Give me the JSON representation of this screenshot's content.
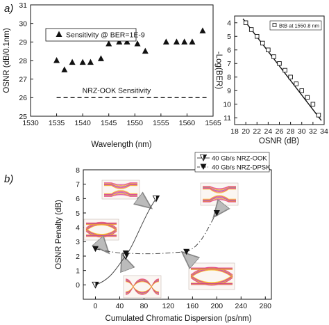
{
  "chart_data": [
    {
      "panel": "a)",
      "type": "scatter",
      "ylabel": "OSNR (dB/0.1nm)",
      "xlabel": "Wavelength (nm)",
      "xlim": [
        1530,
        1565
      ],
      "ylim": [
        25,
        31
      ],
      "xticks": [
        1530,
        1535,
        1540,
        1545,
        1550,
        1555,
        1560,
        1565
      ],
      "yticks": [
        25,
        26,
        27,
        28,
        29,
        30,
        31
      ],
      "grid": false,
      "legend_position": "top-left",
      "series": [
        {
          "name": "Sensitivity @ BER=1E-9",
          "marker": "triangle-up",
          "x": [
            1535,
            1536.5,
            1538,
            1540,
            1541.5,
            1543.5,
            1545,
            1547,
            1548.5,
            1550.5,
            1552,
            1556,
            1558,
            1559.5,
            1561,
            1563
          ],
          "y": [
            28.0,
            27.5,
            27.9,
            27.9,
            27.9,
            28.1,
            28.9,
            29.0,
            29.0,
            28.9,
            28.5,
            29.0,
            29.0,
            29.0,
            29.0,
            29.6
          ]
        }
      ],
      "reference_line": {
        "label": "NRZ-OOK Sensitivity",
        "y": 26.0,
        "style": "dashed"
      }
    },
    {
      "type": "scatter",
      "ylabel": "-Log(BER)",
      "xlabel": "OSNR (dB)",
      "xlim": [
        18,
        34
      ],
      "ylim": [
        11.5,
        3.5
      ],
      "y_inverted": true,
      "xticks": [
        18,
        20,
        22,
        24,
        26,
        28,
        30,
        32,
        34
      ],
      "yticks": [
        4,
        5,
        6,
        7,
        8,
        9,
        10,
        11
      ],
      "legend_position": "top-right",
      "series": [
        {
          "name": "BtB at 1550.8 nm",
          "marker": "open-square",
          "x": [
            20,
            21,
            22,
            23,
            24,
            25,
            26,
            27,
            28,
            29,
            30,
            31,
            32,
            33
          ],
          "y": [
            4.0,
            4.5,
            5.0,
            5.5,
            6.0,
            6.5,
            7.0,
            7.5,
            8.0,
            8.5,
            9.0,
            9.5,
            10.0,
            10.8
          ]
        }
      ],
      "fit_line": {
        "x": [
          19.5,
          33.5
        ],
        "y": [
          3.7,
          11.2
        ]
      }
    },
    {
      "panel": "b)",
      "type": "line",
      "ylabel": "OSNR Penalty (dB)",
      "xlabel": "Cumulated Chromatic Dispersion (ps/nm)",
      "xlim": [
        -20,
        290
      ],
      "ylim": [
        -1,
        8
      ],
      "xticks": [
        0,
        40,
        80,
        120,
        160,
        200,
        240,
        280
      ],
      "yticks": [
        0,
        1,
        2,
        3,
        4,
        5,
        6,
        7,
        8
      ],
      "legend_position": "top-right",
      "series": [
        {
          "name": "40 Gb/s NRZ-OOK",
          "marker": "half-filled-triangle-down",
          "line_style": "solid",
          "x": [
            0,
            50,
            100
          ],
          "y": [
            0.0,
            2.0,
            6.0
          ]
        },
        {
          "name": "40 Gb/s NRZ-DPSK",
          "marker": "filled-triangle-down",
          "line_style": "dash-dot",
          "x": [
            0,
            50,
            150,
            200
          ],
          "y": [
            2.5,
            2.2,
            2.3,
            5.0
          ]
        }
      ],
      "inset_eye_diagrams": 5
    }
  ]
}
